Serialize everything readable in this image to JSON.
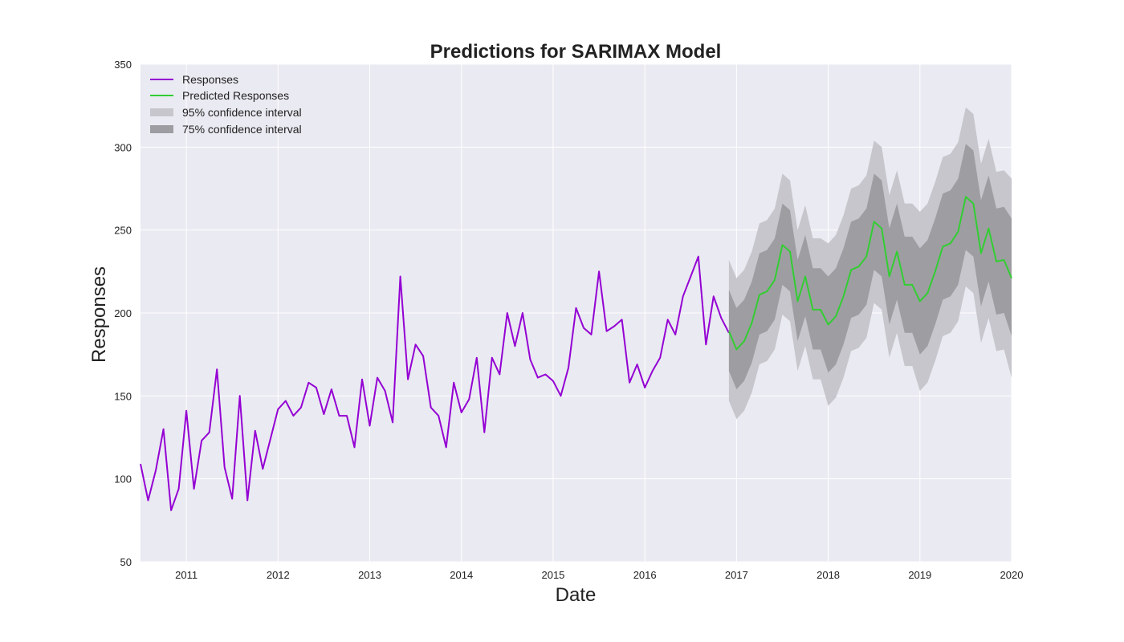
{
  "chart_data": {
    "type": "line",
    "title": "Predictions for SARIMAX Model",
    "xlabel": "Date",
    "ylabel": "Responses",
    "xlim": [
      "2010-07-01",
      "2020-01-01"
    ],
    "ylim": [
      50,
      350
    ],
    "x_ticks": [
      "2011",
      "2012",
      "2013",
      "2014",
      "2015",
      "2016",
      "2017",
      "2018",
      "2019",
      "2020"
    ],
    "y_ticks": [
      50,
      100,
      150,
      200,
      250,
      300,
      350
    ],
    "grid": true,
    "legend_position": "top-left",
    "legend": [
      "Responses",
      "Predicted Responses",
      "95% confidence interval",
      "75% confidence interval"
    ],
    "colors": {
      "responses": "#9400d3",
      "predicted": "#32cd32",
      "ci95": "#c6c6cc",
      "ci75": "#9e9ea2",
      "background": "#eaeaf2",
      "grid": "#ffffff"
    },
    "series": [
      {
        "name": "Responses",
        "x": [
          "2010-07",
          "2010-08",
          "2010-09",
          "2010-10",
          "2010-11",
          "2010-12",
          "2011-01",
          "2011-02",
          "2011-03",
          "2011-04",
          "2011-05",
          "2011-06",
          "2011-07",
          "2011-08",
          "2011-09",
          "2011-10",
          "2011-11",
          "2011-12",
          "2012-01",
          "2012-02",
          "2012-03",
          "2012-04",
          "2012-05",
          "2012-06",
          "2012-07",
          "2012-08",
          "2012-09",
          "2012-10",
          "2012-11",
          "2012-12",
          "2013-01",
          "2013-02",
          "2013-03",
          "2013-04",
          "2013-05",
          "2013-06",
          "2013-07",
          "2013-08",
          "2013-09",
          "2013-10",
          "2013-11",
          "2013-12",
          "2014-01",
          "2014-02",
          "2014-03",
          "2014-04",
          "2014-05",
          "2014-06",
          "2014-07",
          "2014-08",
          "2014-09",
          "2014-10",
          "2014-11",
          "2014-12",
          "2015-01",
          "2015-02",
          "2015-03",
          "2015-04",
          "2015-05",
          "2015-06",
          "2015-07",
          "2015-08",
          "2015-09",
          "2015-10",
          "2015-11",
          "2015-12",
          "2016-01",
          "2016-02",
          "2016-03",
          "2016-04",
          "2016-05",
          "2016-06",
          "2016-07",
          "2016-08",
          "2016-09",
          "2016-10",
          "2016-11",
          "2016-12"
        ],
        "values": [
          109,
          87,
          105,
          130,
          81,
          94,
          141,
          94,
          123,
          128,
          166,
          107,
          88,
          150,
          87,
          129,
          106,
          124,
          142,
          147,
          138,
          143,
          158,
          155,
          139,
          154,
          138,
          138,
          119,
          160,
          132,
          161,
          153,
          134,
          222,
          160,
          181,
          174,
          143,
          138,
          119,
          158,
          140,
          148,
          173,
          128,
          173,
          163,
          200,
          180,
          200,
          172,
          161,
          163,
          159,
          150,
          167,
          203,
          191,
          187,
          225,
          189,
          192,
          196,
          158,
          169,
          155,
          165,
          173,
          196,
          187,
          210,
          222,
          234,
          181,
          210,
          197,
          188
        ]
      },
      {
        "name": "Predicted Responses",
        "x": [
          "2016-12",
          "2017-01",
          "2017-02",
          "2017-03",
          "2017-04",
          "2017-05",
          "2017-06",
          "2017-07",
          "2017-08",
          "2017-09",
          "2017-10",
          "2017-11",
          "2017-12",
          "2018-01",
          "2018-02",
          "2018-03",
          "2018-04",
          "2018-05",
          "2018-06",
          "2018-07",
          "2018-08",
          "2018-09",
          "2018-10",
          "2018-11",
          "2018-12",
          "2019-01",
          "2019-02",
          "2019-03",
          "2019-04",
          "2019-05",
          "2019-06",
          "2019-07",
          "2019-08",
          "2019-09",
          "2019-10",
          "2019-11",
          "2019-12",
          "2020-01"
        ],
        "values": [
          189,
          178,
          183,
          194,
          211,
          213,
          220,
          241,
          237,
          207,
          222,
          202,
          202,
          193,
          198,
          210,
          226,
          228,
          234,
          255,
          251,
          222,
          237,
          217,
          217,
          207,
          212,
          225,
          240,
          242,
          249,
          270,
          266,
          236,
          251,
          231,
          232,
          221
        ],
        "ci95_lower": [
          147,
          136,
          141,
          152,
          169,
          171,
          178,
          199,
          195,
          165,
          180,
          160,
          160,
          144,
          149,
          161,
          177,
          179,
          185,
          206,
          202,
          173,
          188,
          168,
          168,
          153,
          158,
          171,
          186,
          188,
          195,
          216,
          212,
          182,
          197,
          177,
          178,
          161
        ],
        "ci95_upper": [
          232,
          221,
          226,
          237,
          254,
          256,
          263,
          284,
          280,
          250,
          265,
          245,
          245,
          242,
          247,
          259,
          275,
          277,
          283,
          304,
          300,
          271,
          286,
          266,
          266,
          261,
          266,
          279,
          294,
          296,
          303,
          324,
          320,
          290,
          305,
          285,
          286,
          281
        ],
        "ci75_lower": [
          165,
          154,
          159,
          170,
          187,
          189,
          196,
          217,
          213,
          183,
          198,
          178,
          178,
          164,
          169,
          181,
          197,
          199,
          205,
          226,
          222,
          193,
          208,
          188,
          188,
          175,
          180,
          193,
          208,
          210,
          217,
          238,
          234,
          204,
          219,
          199,
          200,
          186
        ],
        "ci75_upper": [
          214,
          203,
          208,
          219,
          236,
          238,
          245,
          266,
          262,
          232,
          247,
          227,
          227,
          222,
          227,
          239,
          255,
          257,
          263,
          284,
          280,
          251,
          266,
          246,
          246,
          239,
          244,
          257,
          272,
          274,
          281,
          302,
          298,
          268,
          283,
          263,
          264,
          257
        ]
      }
    ]
  }
}
